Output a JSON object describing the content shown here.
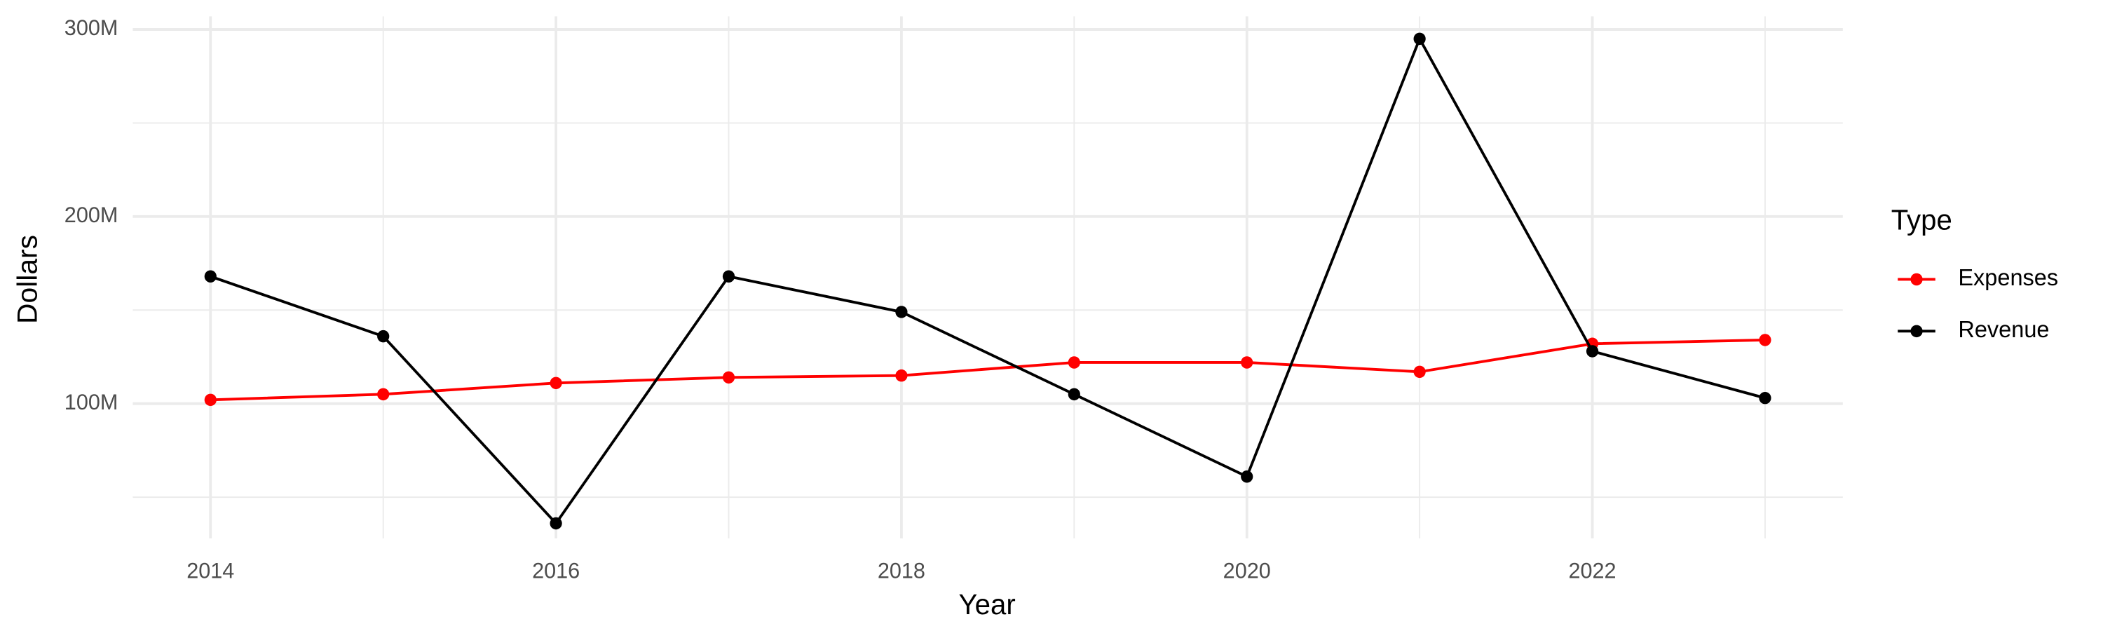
{
  "chart_data": {
    "type": "line",
    "x_label": "Year",
    "y_label": "Dollars",
    "legend_title": "Type",
    "legend_position": "right",
    "x": [
      2014,
      2015,
      2016,
      2017,
      2018,
      2019,
      2020,
      2021,
      2022,
      2023
    ],
    "series": [
      {
        "name": "Expenses",
        "color": "#ff0000",
        "values": [
          102000000,
          105000000,
          111000000,
          114000000,
          115000000,
          122000000,
          122000000,
          117000000,
          132000000,
          134000000
        ]
      },
      {
        "name": "Revenue",
        "color": "#000000",
        "values": [
          168000000,
          136000000,
          36000000,
          168000000,
          149000000,
          105000000,
          61000000,
          295000000,
          128000000,
          103000000
        ]
      }
    ],
    "xlim": [
      2013.55,
      2023.45
    ],
    "xticks": [
      2014,
      2016,
      2018,
      2020,
      2022
    ],
    "xminorticks": [
      2015,
      2017,
      2019,
      2021,
      2023
    ],
    "ylim": [
      28000000,
      307000000
    ],
    "yticks": [
      {
        "value": 100000000,
        "label": "100M"
      },
      {
        "value": 200000000,
        "label": "200M"
      },
      {
        "value": 300000000,
        "label": "300M"
      }
    ],
    "yminorticks": [
      50000000,
      150000000,
      250000000
    ],
    "grid": true
  }
}
